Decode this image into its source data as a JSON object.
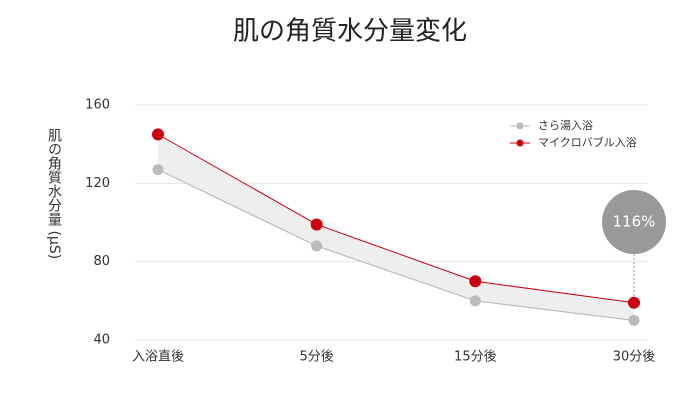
{
  "chart_data": {
    "type": "line",
    "title": "肌の角質水分量変化",
    "y_label": "肌の角質水分量 (μS)",
    "categories": [
      "入浴直後",
      "5分後",
      "15分後",
      "30分後"
    ],
    "series": [
      {
        "name": "さら湯入浴",
        "color": "#bbbbbb",
        "values": [
          127,
          88,
          60,
          50
        ]
      },
      {
        "name": "マイクロバブル入浴",
        "color": "#cc0010",
        "values": [
          145,
          99,
          70,
          59
        ]
      }
    ],
    "ylim": [
      40,
      160
    ],
    "yticks": [
      40,
      80,
      120,
      160
    ],
    "grid": true,
    "legend": "top-right",
    "band_color": "#eeeeee",
    "annotation": {
      "text": "116%",
      "color": "#999999"
    }
  }
}
